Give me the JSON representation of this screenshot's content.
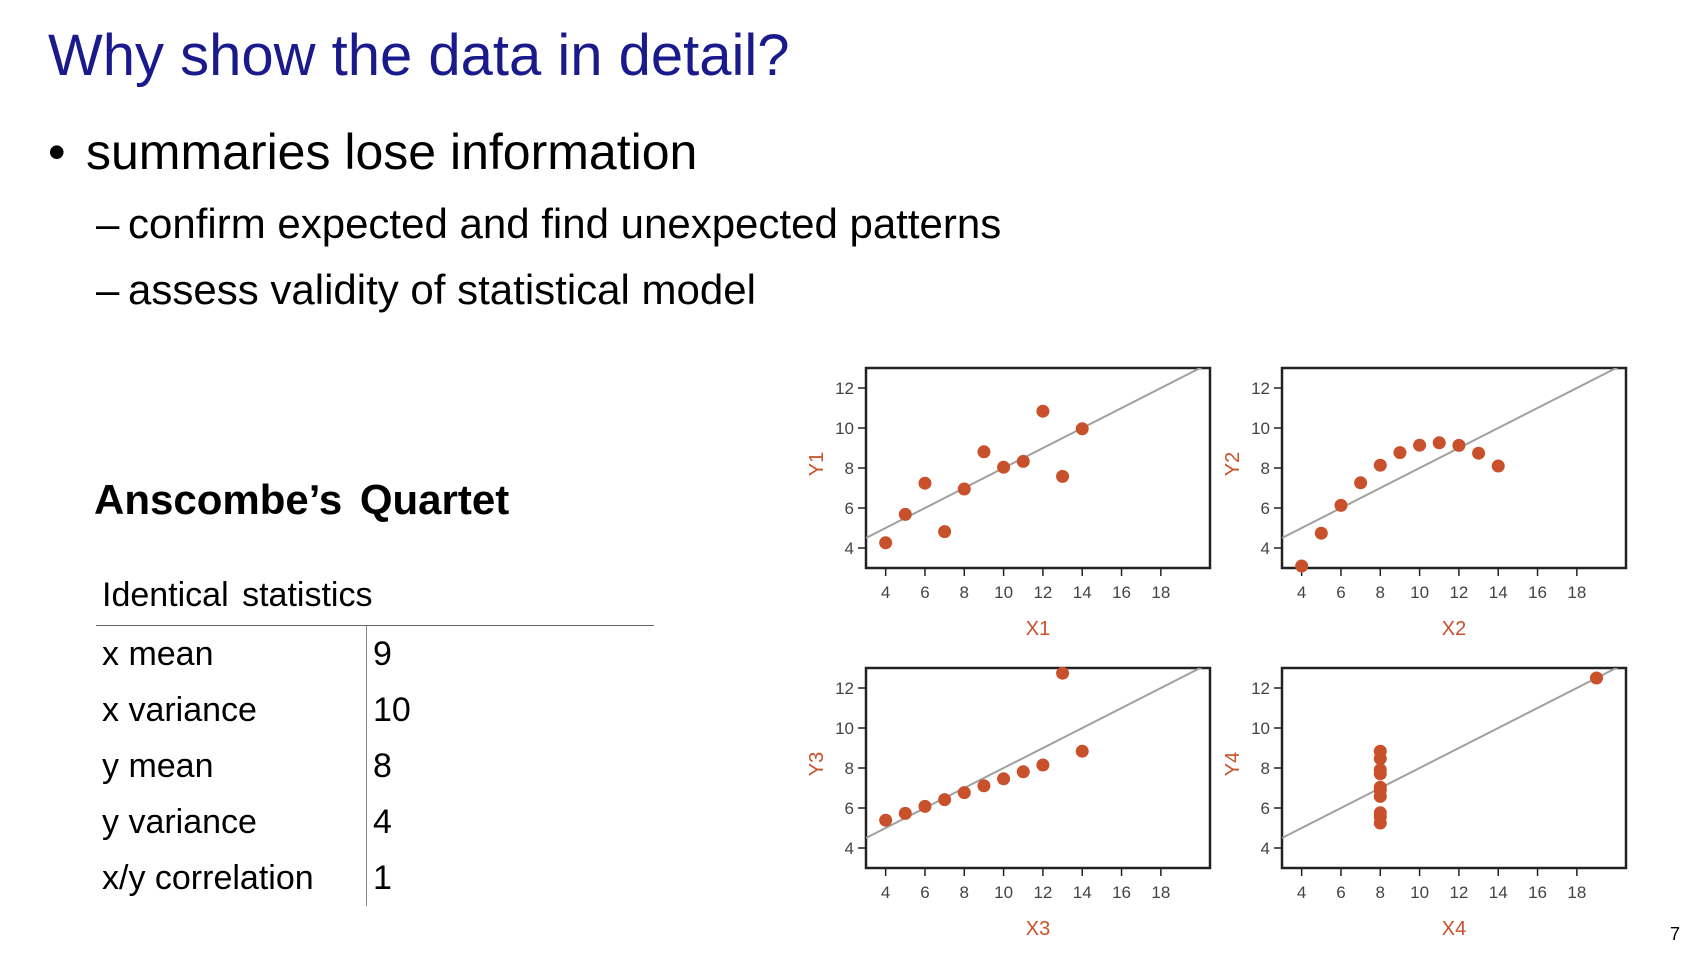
{
  "slide": {
    "title": "Why show the data in detail?",
    "bullet": "summaries lose information",
    "bullet_marker": "•",
    "sub_marker": "–",
    "subpoints": [
      "confirm expected and find unexpected patterns",
      "assess validity of statistical model"
    ],
    "quartet_title": "Anscombe’s  Quartet",
    "page_number": "7"
  },
  "stats_table": {
    "header": "Identical  statistics",
    "rows": [
      {
        "label": "x mean",
        "value": "9"
      },
      {
        "label": "x variance",
        "value": "10"
      },
      {
        "label": "y mean",
        "value": "8"
      },
      {
        "label": "y variance",
        "value": "4"
      },
      {
        "label": "x/y correlation",
        "value": "1"
      }
    ]
  },
  "colors": {
    "title": "#1a1a8c",
    "point": "#c8502a",
    "axis_label": "#c8502a",
    "regression_line": "#a0a0a0",
    "frame": "#222222"
  },
  "chart_data": [
    {
      "type": "scatter",
      "xlabel": "X1",
      "ylabel": "Y1",
      "xlim": [
        3,
        20.5
      ],
      "ylim": [
        3,
        13
      ],
      "xticks": [
        4,
        6,
        8,
        10,
        12,
        14,
        16,
        18
      ],
      "yticks": [
        4,
        6,
        8,
        10,
        12
      ],
      "regression": {
        "slope": 0.5,
        "intercept": 3
      },
      "x": [
        10,
        8,
        13,
        9,
        11,
        14,
        6,
        4,
        12,
        7,
        5
      ],
      "y": [
        8.04,
        6.95,
        7.58,
        8.81,
        8.33,
        9.96,
        7.24,
        4.26,
        10.84,
        4.82,
        5.68
      ]
    },
    {
      "type": "scatter",
      "xlabel": "X2",
      "ylabel": "Y2",
      "xlim": [
        3,
        20.5
      ],
      "ylim": [
        3,
        13
      ],
      "xticks": [
        4,
        6,
        8,
        10,
        12,
        14,
        16,
        18
      ],
      "yticks": [
        4,
        6,
        8,
        10,
        12
      ],
      "regression": {
        "slope": 0.5,
        "intercept": 3
      },
      "x": [
        10,
        8,
        13,
        9,
        11,
        14,
        6,
        4,
        12,
        7,
        5
      ],
      "y": [
        9.14,
        8.14,
        8.74,
        8.77,
        9.26,
        8.1,
        6.13,
        3.1,
        9.13,
        7.26,
        4.74
      ]
    },
    {
      "type": "scatter",
      "xlabel": "X3",
      "ylabel": "Y3",
      "xlim": [
        3,
        20.5
      ],
      "ylim": [
        3,
        13
      ],
      "xticks": [
        4,
        6,
        8,
        10,
        12,
        14,
        16,
        18
      ],
      "yticks": [
        4,
        6,
        8,
        10,
        12
      ],
      "regression": {
        "slope": 0.5,
        "intercept": 3
      },
      "x": [
        10,
        8,
        13,
        9,
        11,
        14,
        6,
        4,
        12,
        7,
        5
      ],
      "y": [
        7.46,
        6.77,
        12.74,
        7.11,
        7.81,
        8.84,
        6.08,
        5.39,
        8.15,
        6.42,
        5.73
      ]
    },
    {
      "type": "scatter",
      "xlabel": "X4",
      "ylabel": "Y4",
      "xlim": [
        3,
        20.5
      ],
      "ylim": [
        3,
        13
      ],
      "xticks": [
        4,
        6,
        8,
        10,
        12,
        14,
        16,
        18
      ],
      "yticks": [
        4,
        6,
        8,
        10,
        12
      ],
      "regression": {
        "slope": 0.5,
        "intercept": 3
      },
      "x": [
        8,
        8,
        8,
        8,
        8,
        8,
        8,
        19,
        8,
        8,
        8
      ],
      "y": [
        6.58,
        5.76,
        7.71,
        8.84,
        8.47,
        7.04,
        5.25,
        12.5,
        5.56,
        7.91,
        6.89
      ]
    }
  ]
}
